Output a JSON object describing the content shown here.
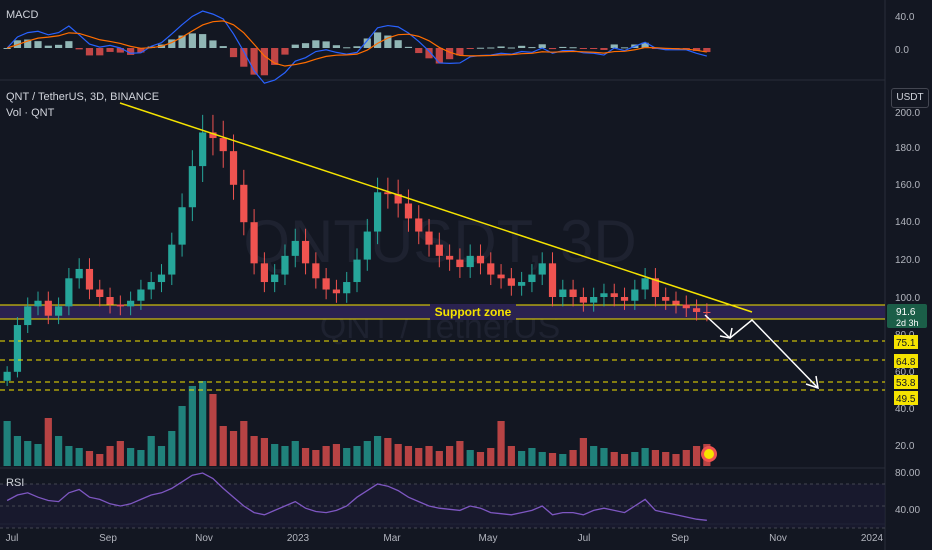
{
  "symbol": {
    "title": "QNT / TetherUS, 3D, BINANCE",
    "volume_label": "Vol · QNT",
    "watermark_symbol": "QNTUSDT, 3D",
    "watermark_name": "QNT / TetherUS",
    "currency_button": "USDT"
  },
  "macd_pane": {
    "label": "MACD",
    "ticks": [
      "40.0",
      "0.0"
    ]
  },
  "rsi_pane": {
    "label": "RSI",
    "ticks": [
      "80.00",
      "40.00"
    ]
  },
  "price_axis": {
    "ticks": [
      "200.0",
      "180.0",
      "160.0",
      "140.0",
      "120.0",
      "100.0",
      "80.0",
      "60.0",
      "40.0",
      "20.0"
    ]
  },
  "time_axis": {
    "ticks": [
      "Jul",
      "Sep",
      "Nov",
      "2023",
      "Mar",
      "May",
      "Jul",
      "Sep",
      "Nov",
      "2024"
    ]
  },
  "price_tags": [
    {
      "text": "91.6",
      "sub": "2d 3h",
      "kind": "last"
    },
    {
      "text": "75.1",
      "kind": "level"
    },
    {
      "text": "64.8",
      "kind": "level"
    },
    {
      "text": "53.8",
      "kind": "level"
    },
    {
      "text": "49.5",
      "kind": "level"
    }
  ],
  "annotations": {
    "support_zone": "Support zone"
  },
  "colors": {
    "up": "#26a69a",
    "down": "#ef5350",
    "trendline": "#f5e300",
    "zone_fill": "#2a2250",
    "zone_border": "#f5e300",
    "rsi_line": "#7e57c2",
    "macd_line": "#2962ff",
    "signal_line": "#ff6d00",
    "background": "#131722",
    "text": "#b2b5be"
  },
  "chart_data": {
    "type": "candlestick",
    "title": "QNT / TetherUS, 3D, BINANCE",
    "x_axis_ticks": [
      "Jul",
      "Sep",
      "Nov",
      "2023",
      "Mar",
      "May",
      "Jul",
      "Sep",
      "Nov",
      "2024"
    ],
    "y_axis_ticks": [
      200,
      180,
      160,
      140,
      120,
      100,
      80,
      60,
      40,
      20
    ],
    "y_range": [
      0,
      210
    ],
    "price_close_series": [
      60,
      85,
      95,
      98,
      90,
      95,
      110,
      115,
      104,
      100,
      96,
      95,
      98,
      104,
      108,
      112,
      128,
      148,
      170,
      188,
      185,
      178,
      160,
      140,
      118,
      108,
      112,
      122,
      130,
      118,
      110,
      104,
      102,
      108,
      120,
      135,
      156,
      155,
      150,
      142,
      135,
      128,
      122,
      120,
      116,
      122,
      118,
      112,
      110,
      106,
      108,
      112,
      118,
      100,
      104,
      100,
      97,
      100,
      102,
      100,
      98,
      104,
      110,
      100,
      98,
      96,
      94,
      92,
      91.6
    ],
    "volume_series": [
      45,
      30,
      25,
      22,
      48,
      30,
      20,
      18,
      15,
      12,
      20,
      25,
      18,
      16,
      30,
      20,
      35,
      60,
      80,
      85,
      72,
      40,
      35,
      45,
      30,
      28,
      22,
      20,
      25,
      18,
      16,
      20,
      22,
      18,
      20,
      25,
      30,
      28,
      22,
      20,
      18,
      20,
      15,
      20,
      25,
      16,
      14,
      18,
      45,
      20,
      15,
      18,
      14,
      13,
      12,
      16,
      28,
      20,
      18,
      14,
      12,
      14,
      18,
      16,
      14,
      12,
      16,
      20,
      22
    ],
    "rsi_series": [
      55,
      60,
      62,
      58,
      55,
      54,
      62,
      65,
      58,
      56,
      52,
      50,
      52,
      56,
      60,
      62,
      66,
      72,
      78,
      80,
      75,
      66,
      58,
      50,
      44,
      42,
      46,
      50,
      54,
      48,
      45,
      44,
      46,
      50,
      58,
      64,
      70,
      68,
      64,
      58,
      54,
      50,
      48,
      47,
      46,
      50,
      48,
      44,
      43,
      42,
      44,
      46,
      50,
      42,
      44,
      44,
      42,
      46,
      48,
      46,
      44,
      50,
      56,
      46,
      44,
      42,
      40,
      38,
      37
    ],
    "horizontal_levels": [
      97,
      91.6,
      75.1,
      64.8,
      53.8,
      49.5
    ],
    "support_zone": [
      89,
      97
    ],
    "trendline": {
      "from": [
        0,
        205
      ],
      "to": [
        1,
        93
      ]
    },
    "last_price": 91.6
  }
}
